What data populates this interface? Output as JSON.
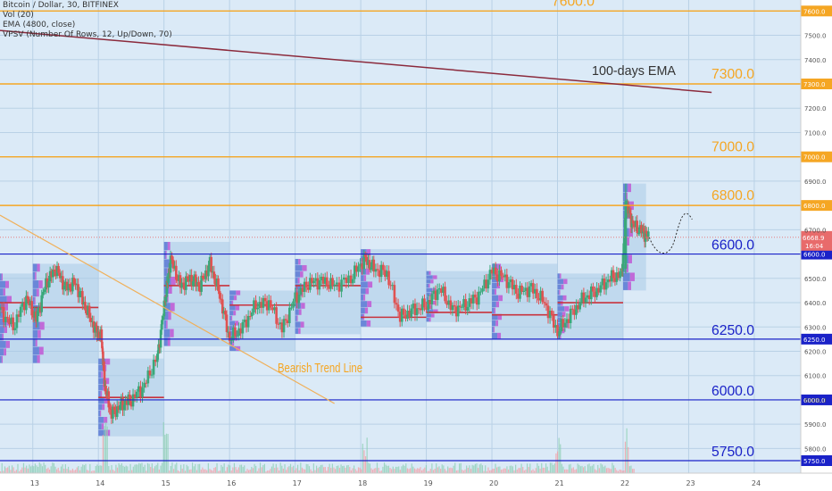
{
  "info": {
    "symbol_line": "Bitcoin / Dollar, 30, BITFINEX",
    "volume_line": "Vol (20)",
    "ema_line": "EMA (4800, close)",
    "vpsv_line": "VPSV (Number Of Rows, 12, Up/Down, 70)"
  },
  "colors": {
    "background": "#ffffff",
    "plot_tint": "#dbeaf7",
    "grid": "#b9d1e6",
    "orange": "#f5a623",
    "blue": "#1a22c8",
    "ema": "#8b2a3c",
    "trend": "#f0b05a",
    "candle_up": "#3aa87a",
    "candle_down": "#e05252",
    "poc": "#c8323c",
    "profile_box": "#a9cbe8",
    "profile_up": "#6a87d8",
    "profile_down": "#c06ad8",
    "price_tag": "#e86b6b"
  },
  "chart_data": {
    "type": "candlestick",
    "symbol": "Bitcoin / Dollar",
    "interval": "30",
    "exchange": "BITFINEX",
    "ylim": [
      5710,
      7650
    ],
    "xlim": [
      12.5,
      24.6
    ],
    "x_ticks": [
      "13",
      "14",
      "15",
      "16",
      "17",
      "18",
      "19",
      "20",
      "21",
      "22",
      "23",
      "24"
    ],
    "y_ticks": [
      "5800.0",
      "5900.0",
      "6000.0",
      "6100.0",
      "6200.0",
      "6300.0",
      "6400.0",
      "6500.0",
      "6700.0",
      "6900.0",
      "7100.0",
      "7200.0",
      "7400.0",
      "7500.0"
    ],
    "resistance_levels": [
      {
        "value": 7600,
        "label": "7600.0",
        "tag": "7600.0",
        "color": "orange"
      },
      {
        "value": 7300,
        "label": "7300.0",
        "tag": "7300.0",
        "color": "orange"
      },
      {
        "value": 7000,
        "label": "7000.0",
        "tag": "7000.0",
        "color": "orange"
      },
      {
        "value": 6800,
        "label": "6800.0",
        "tag": "6800.0",
        "color": "orange"
      }
    ],
    "support_levels": [
      {
        "value": 6600,
        "label": "6600.0",
        "tag": "6600.0",
        "color": "blue"
      },
      {
        "value": 6250,
        "label": "6250.0",
        "tag": "6250.0",
        "color": "blue"
      },
      {
        "value": 6000,
        "label": "6000.0",
        "tag": "6000.0",
        "color": "blue"
      },
      {
        "value": 5750,
        "label": "5750.0",
        "tag": "5750.0",
        "color": "blue"
      }
    ],
    "last_price": {
      "value": 6668.9,
      "label": "6668.9",
      "countdown": "16:04"
    },
    "ema": {
      "label": "100-days EMA",
      "x": [
        12.5,
        23.35
      ],
      "y": [
        7520,
        7265
      ]
    },
    "trend_line": {
      "label": "Bearish Trend Line",
      "x": [
        12.5,
        17.6
      ],
      "y": [
        6760,
        5985
      ]
    },
    "candles_close": [
      {
        "x": 12.5,
        "y": 6370
      },
      {
        "x": 12.7,
        "y": 6300
      },
      {
        "x": 12.9,
        "y": 6420
      },
      {
        "x": 13.05,
        "y": 6330
      },
      {
        "x": 13.2,
        "y": 6480
      },
      {
        "x": 13.35,
        "y": 6540
      },
      {
        "x": 13.5,
        "y": 6460
      },
      {
        "x": 13.65,
        "y": 6480
      },
      {
        "x": 13.8,
        "y": 6380
      },
      {
        "x": 13.95,
        "y": 6290
      },
      {
        "x": 14.05,
        "y": 6250
      },
      {
        "x": 14.1,
        "y": 6050
      },
      {
        "x": 14.2,
        "y": 5940
      },
      {
        "x": 14.35,
        "y": 5980
      },
      {
        "x": 14.5,
        "y": 6000
      },
      {
        "x": 14.7,
        "y": 6060
      },
      {
        "x": 14.9,
        "y": 6180
      },
      {
        "x": 15.02,
        "y": 6420
      },
      {
        "x": 15.1,
        "y": 6580
      },
      {
        "x": 15.25,
        "y": 6470
      },
      {
        "x": 15.4,
        "y": 6500
      },
      {
        "x": 15.55,
        "y": 6470
      },
      {
        "x": 15.7,
        "y": 6560
      },
      {
        "x": 15.85,
        "y": 6430
      },
      {
        "x": 16.0,
        "y": 6250
      },
      {
        "x": 16.2,
        "y": 6300
      },
      {
        "x": 16.4,
        "y": 6390
      },
      {
        "x": 16.6,
        "y": 6400
      },
      {
        "x": 16.8,
        "y": 6290
      },
      {
        "x": 17.0,
        "y": 6420
      },
      {
        "x": 17.2,
        "y": 6480
      },
      {
        "x": 17.4,
        "y": 6490
      },
      {
        "x": 17.6,
        "y": 6470
      },
      {
        "x": 17.85,
        "y": 6500
      },
      {
        "x": 18.05,
        "y": 6580
      },
      {
        "x": 18.2,
        "y": 6540
      },
      {
        "x": 18.4,
        "y": 6520
      },
      {
        "x": 18.6,
        "y": 6340
      },
      {
        "x": 18.8,
        "y": 6370
      },
      {
        "x": 19.0,
        "y": 6390
      },
      {
        "x": 19.2,
        "y": 6460
      },
      {
        "x": 19.4,
        "y": 6370
      },
      {
        "x": 19.6,
        "y": 6390
      },
      {
        "x": 19.8,
        "y": 6430
      },
      {
        "x": 20.0,
        "y": 6530
      },
      {
        "x": 20.2,
        "y": 6500
      },
      {
        "x": 20.4,
        "y": 6440
      },
      {
        "x": 20.6,
        "y": 6460
      },
      {
        "x": 20.8,
        "y": 6400
      },
      {
        "x": 21.0,
        "y": 6280
      },
      {
        "x": 21.2,
        "y": 6350
      },
      {
        "x": 21.4,
        "y": 6420
      },
      {
        "x": 21.6,
        "y": 6450
      },
      {
        "x": 21.8,
        "y": 6500
      },
      {
        "x": 21.98,
        "y": 6520
      },
      {
        "x": 22.05,
        "y": 6800
      },
      {
        "x": 22.15,
        "y": 6720
      },
      {
        "x": 22.3,
        "y": 6690
      },
      {
        "x": 22.4,
        "y": 6669
      }
    ]
  }
}
